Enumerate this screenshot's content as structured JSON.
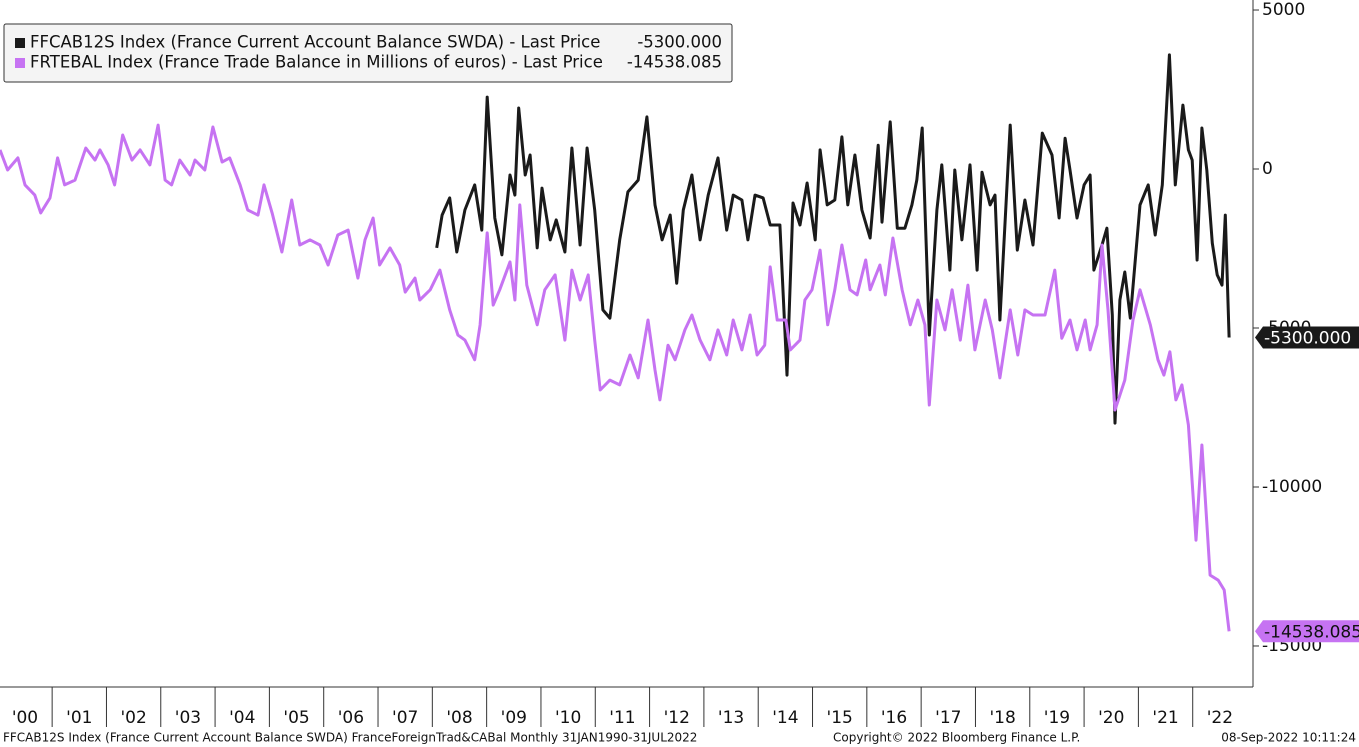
{
  "chart_data": {
    "type": "line",
    "xlim": [
      2000.04,
      2023.11
    ],
    "xticks": [
      {
        "value": 2000,
        "label": "'00"
      },
      {
        "value": 2001,
        "label": "'01"
      },
      {
        "value": 2002,
        "label": "'02"
      },
      {
        "value": 2003,
        "label": "'03"
      },
      {
        "value": 2004,
        "label": "'04"
      },
      {
        "value": 2005,
        "label": "'05"
      },
      {
        "value": 2006,
        "label": "'06"
      },
      {
        "value": 2007,
        "label": "'07"
      },
      {
        "value": 2008,
        "label": "'08"
      },
      {
        "value": 2009,
        "label": "'09"
      },
      {
        "value": 2010,
        "label": "'10"
      },
      {
        "value": 2011,
        "label": "'11"
      },
      {
        "value": 2012,
        "label": "'12"
      },
      {
        "value": 2013,
        "label": "'13"
      },
      {
        "value": 2014,
        "label": "'14"
      },
      {
        "value": 2015,
        "label": "'15"
      },
      {
        "value": 2016,
        "label": "'16"
      },
      {
        "value": 2017,
        "label": "'17"
      },
      {
        "value": 2018,
        "label": "'18"
      },
      {
        "value": 2019,
        "label": "'19"
      },
      {
        "value": 2020,
        "label": "'20"
      },
      {
        "value": 2021,
        "label": "'21"
      },
      {
        "value": 2022,
        "label": "'22"
      }
    ],
    "ylim": [
      -16290,
      5315
    ],
    "yticks": [
      5000,
      0,
      -5000,
      -10000,
      -15000
    ],
    "grid": false,
    "legend": "top-left",
    "series": [
      {
        "name": "FFCAB12S Index (France Current Account Balance SWDA) - Last Price",
        "last_label": "-5300.000",
        "color": "#1a1a1a",
        "x": [
          2008.08,
          2008.18,
          2008.32,
          2008.45,
          2008.6,
          2008.78,
          2008.91,
          2009.01,
          2009.15,
          2009.28,
          2009.43,
          2009.52,
          2009.59,
          2009.71,
          2009.8,
          2009.93,
          2010.02,
          2010.17,
          2010.28,
          2010.44,
          2010.57,
          2010.72,
          2010.85,
          2010.99,
          2011.14,
          2011.27,
          2011.45,
          2011.6,
          2011.79,
          2011.95,
          2012.1,
          2012.23,
          2012.38,
          2012.5,
          2012.62,
          2012.78,
          2012.93,
          2013.08,
          2013.26,
          2013.42,
          2013.54,
          2013.7,
          2013.81,
          2013.94,
          2014.09,
          2014.22,
          2014.4,
          2014.53,
          2014.64,
          2014.77,
          2014.9,
          2015.05,
          2015.14,
          2015.27,
          2015.41,
          2015.54,
          2015.65,
          2015.78,
          2015.91,
          2016.06,
          2016.21,
          2016.28,
          2016.43,
          2016.56,
          2016.7,
          2016.83,
          2016.92,
          2017.02,
          2017.15,
          2017.29,
          2017.38,
          2017.53,
          2017.62,
          2017.75,
          2017.9,
          2018.03,
          2018.12,
          2018.27,
          2018.36,
          2018.45,
          2018.64,
          2018.77,
          2018.91,
          2019.06,
          2019.23,
          2019.41,
          2019.54,
          2019.65,
          2019.74,
          2019.87,
          2020.0,
          2020.11,
          2020.18,
          2020.33,
          2020.42,
          2020.52,
          2020.57,
          2020.66,
          2020.75,
          2020.85,
          2021.03,
          2021.18,
          2021.31,
          2021.44,
          2021.57,
          2021.68,
          2021.82,
          2021.92,
          2021.99,
          2022.08,
          2022.17,
          2022.26,
          2022.36,
          2022.45,
          2022.54,
          2022.6,
          2022.67
        ],
        "values": [
          -2480,
          -1450,
          -910,
          -2610,
          -1290,
          -500,
          -1920,
          2260,
          -1540,
          -2700,
          -190,
          -820,
          1920,
          -190,
          440,
          -2480,
          -600,
          -2230,
          -1600,
          -2610,
          660,
          -2390,
          660,
          -1290,
          -4430,
          -4690,
          -2230,
          -720,
          -350,
          1640,
          -1130,
          -2230,
          -1450,
          -3590,
          -1290,
          -190,
          -2230,
          -820,
          350,
          -1920,
          -820,
          -975,
          -2230,
          -820,
          -910,
          -1760,
          -1760,
          -6480,
          -1070,
          -1760,
          -440,
          -2230,
          600,
          -1130,
          -975,
          1010,
          -1130,
          440,
          -1290,
          -2170,
          750,
          -1670,
          1480,
          -1860,
          -1860,
          -1130,
          -350,
          1290,
          -5220,
          -1290,
          130,
          -3180,
          -30,
          -2230,
          130,
          -3180,
          -100,
          -1130,
          -820,
          -4750,
          1380,
          -2550,
          -975,
          -2390,
          1130,
          440,
          -1540,
          970,
          -30,
          -1540,
          -500,
          -190,
          -3180,
          -2390,
          -1860,
          -4590,
          -7990,
          -4120,
          -3240,
          -4690,
          -1130,
          -500,
          -2075,
          -500,
          3590,
          -500,
          2010,
          600,
          280,
          -2860,
          1290,
          -30,
          -2330,
          -3330,
          -3650,
          -1450,
          -5300
        ]
      },
      {
        "name": "FRTEBAL Index (France Trade Balance in Millions of euros) - Last Price",
        "last_label": "-14538.085",
        "color": "#c673f2",
        "x": [
          2000.04,
          2000.18,
          2000.37,
          2000.5,
          2000.68,
          2000.79,
          2000.96,
          2001.1,
          2001.23,
          2001.42,
          2001.62,
          2001.79,
          2001.88,
          2002.03,
          2002.15,
          2002.3,
          2002.47,
          2002.62,
          2002.8,
          2002.95,
          2003.08,
          2003.2,
          2003.35,
          2003.54,
          2003.63,
          2003.81,
          2003.96,
          2004.13,
          2004.27,
          2004.46,
          2004.6,
          2004.79,
          2004.9,
          2005.05,
          2005.23,
          2005.41,
          2005.56,
          2005.75,
          2005.93,
          2006.08,
          2006.26,
          2006.45,
          2006.63,
          2006.76,
          2006.91,
          2007.03,
          2007.22,
          2007.4,
          2007.5,
          2007.68,
          2007.77,
          2007.96,
          2008.14,
          2008.32,
          2008.47,
          2008.6,
          2008.78,
          2008.88,
          2009.01,
          2009.12,
          2009.24,
          2009.43,
          2009.52,
          2009.61,
          2009.74,
          2009.93,
          2010.07,
          2010.26,
          2010.44,
          2010.57,
          2010.72,
          2010.87,
          2010.99,
          2011.09,
          2011.27,
          2011.45,
          2011.64,
          2011.79,
          2011.97,
          2012.1,
          2012.19,
          2012.34,
          2012.47,
          2012.65,
          2012.78,
          2012.93,
          2013.11,
          2013.26,
          2013.42,
          2013.54,
          2013.7,
          2013.85,
          2013.98,
          2014.12,
          2014.22,
          2014.35,
          2014.51,
          2014.59,
          2014.77,
          2014.86,
          2014.99,
          2015.14,
          2015.28,
          2015.41,
          2015.54,
          2015.69,
          2015.82,
          2015.98,
          2016.06,
          2016.24,
          2016.34,
          2016.48,
          2016.65,
          2016.8,
          2016.94,
          2017.07,
          2017.15,
          2017.29,
          2017.44,
          2017.57,
          2017.72,
          2017.86,
          2017.99,
          2018.18,
          2018.31,
          2018.45,
          2018.64,
          2018.78,
          2018.91,
          2019.06,
          2019.28,
          2019.46,
          2019.59,
          2019.74,
          2019.87,
          2020.02,
          2020.11,
          2020.24,
          2020.33,
          2020.44,
          2020.57,
          2020.75,
          2020.9,
          2021.03,
          2021.22,
          2021.36,
          2021.47,
          2021.58,
          2021.69,
          2021.8,
          2021.92,
          2022.06,
          2022.17,
          2022.32,
          2022.47,
          2022.58,
          2022.67
        ],
        "values": [
          600,
          -30,
          350,
          -500,
          -820,
          -1380,
          -910,
          350,
          -500,
          -350,
          660,
          280,
          600,
          130,
          -500,
          1070,
          280,
          600,
          130,
          1380,
          -350,
          -500,
          280,
          -190,
          280,
          -30,
          1320,
          220,
          350,
          -500,
          -1290,
          -1450,
          -500,
          -1380,
          -2610,
          -975,
          -2390,
          -2230,
          -2390,
          -3020,
          -2075,
          -1920,
          -3430,
          -2230,
          -1540,
          -3020,
          -2480,
          -3020,
          -3870,
          -3430,
          -4120,
          -3800,
          -3180,
          -4430,
          -5220,
          -5380,
          -6000,
          -4900,
          -2010,
          -4280,
          -3800,
          -2920,
          -4120,
          -1130,
          -3650,
          -4900,
          -3800,
          -3330,
          -5380,
          -3180,
          -4120,
          -3330,
          -5380,
          -6950,
          -6640,
          -6790,
          -5850,
          -6570,
          -4750,
          -6320,
          -7260,
          -5540,
          -6000,
          -5060,
          -4590,
          -5380,
          -6000,
          -5060,
          -5850,
          -4750,
          -5690,
          -4590,
          -5850,
          -5540,
          -3080,
          -4750,
          -4750,
          -5690,
          -5380,
          -4120,
          -3800,
          -2550,
          -4900,
          -3800,
          -2390,
          -3800,
          -3960,
          -2860,
          -3800,
          -3020,
          -3960,
          -2170,
          -3800,
          -4900,
          -4120,
          -4900,
          -7420,
          -4120,
          -5060,
          -3800,
          -5380,
          -3650,
          -5690,
          -4120,
          -5060,
          -6570,
          -4430,
          -5850,
          -4430,
          -4590,
          -4590,
          -3180,
          -5320,
          -4750,
          -5690,
          -4750,
          -5690,
          -4900,
          -2390,
          -4430,
          -7580,
          -6640,
          -4750,
          -3800,
          -4900,
          -6000,
          -6480,
          -5750,
          -7260,
          -6790,
          -8050,
          -11670,
          -8680,
          -12770,
          -12930,
          -13240,
          -14538.085
        ]
      }
    ],
    "footer": {
      "left": "FFCAB12S Index (France Current Account Balance SWDA) FranceForeignTrad&CABal  Monthly 31JAN1990-31JUL2022",
      "center": "Copyright© 2022 Bloomberg Finance L.P.",
      "right": "08-Sep-2022 10:11:24"
    }
  }
}
